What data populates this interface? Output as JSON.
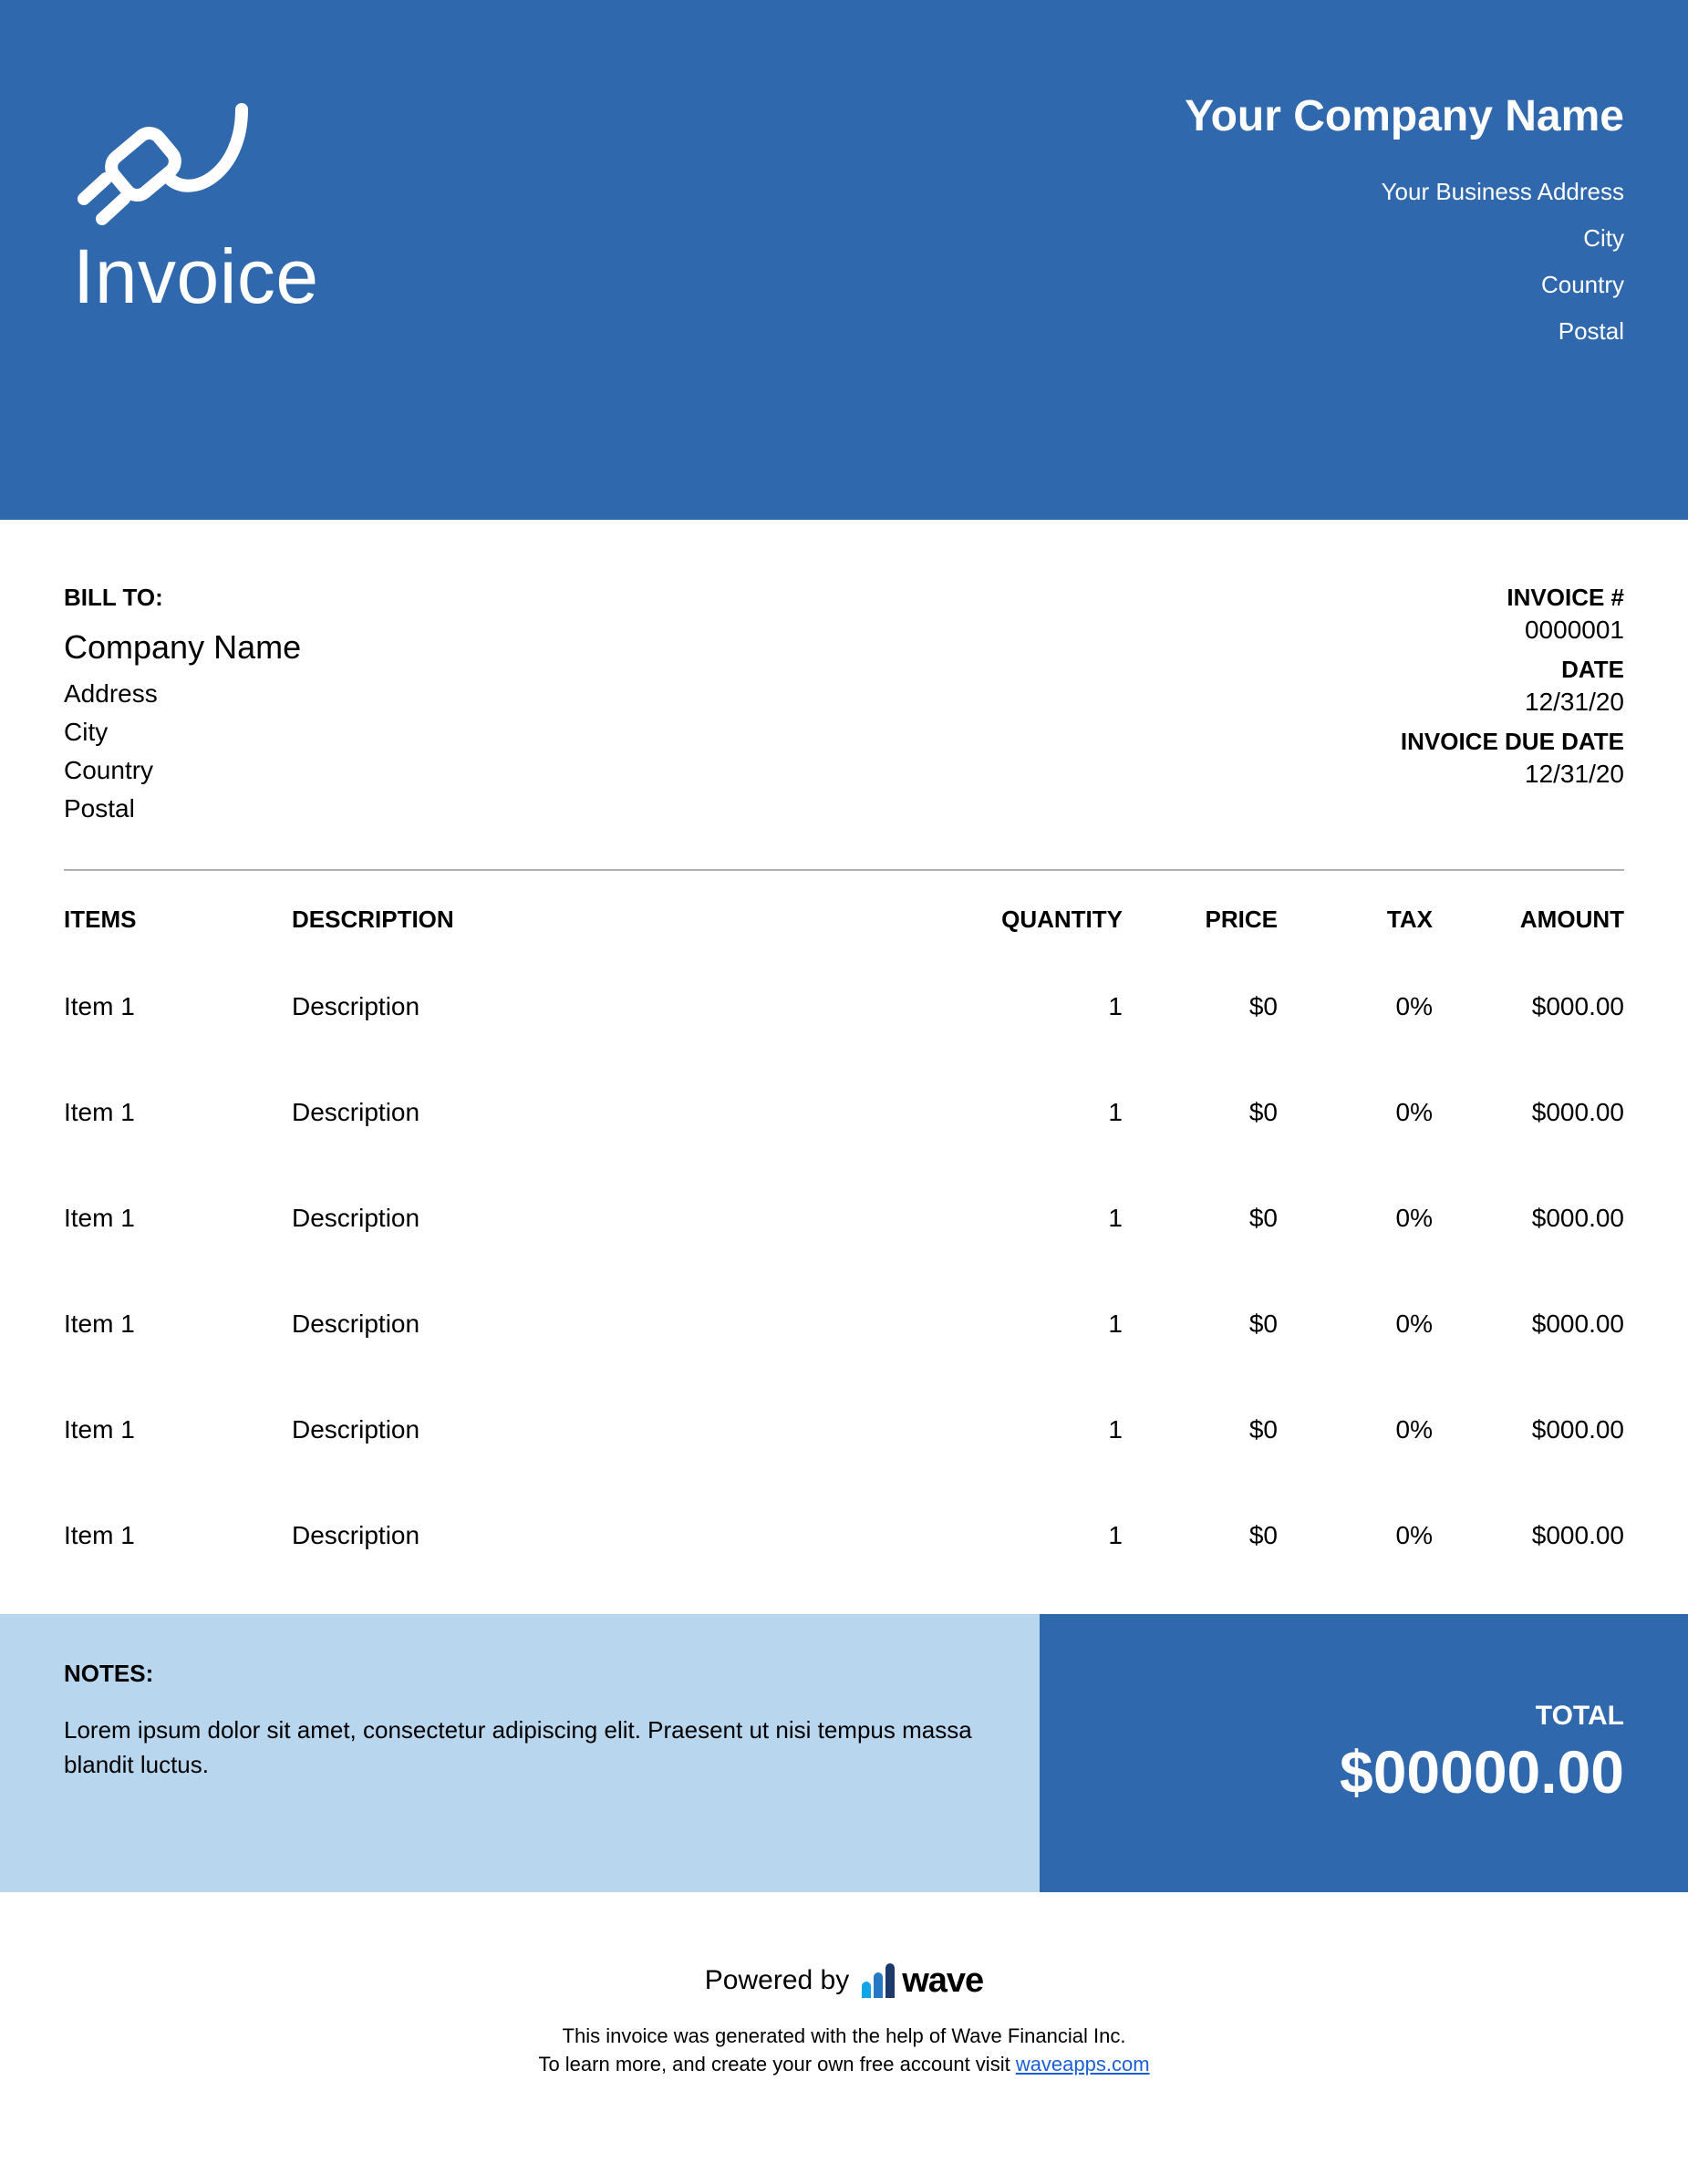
{
  "colors": {
    "primary": "#2f68ac",
    "notes_bg": "#b9d6ef",
    "text": "#000000",
    "white": "#ffffff",
    "hr": "#b0b0b0",
    "link": "#1a5fd6"
  },
  "header": {
    "title": "Invoice",
    "company_name": "Your Company Name",
    "address": [
      "Your Business Address",
      "City",
      "Country",
      "Postal"
    ]
  },
  "bill_to": {
    "label": "BILL TO:",
    "company": "Company Name",
    "lines": [
      "Address",
      "City",
      "Country",
      "Postal"
    ]
  },
  "invoice_meta": {
    "number_label": "INVOICE #",
    "number": "0000001",
    "date_label": "DATE",
    "date": "12/31/20",
    "due_label": "INVOICE DUE DATE",
    "due": "12/31/20"
  },
  "table": {
    "headers": {
      "items": "ITEMS",
      "description": "DESCRIPTION",
      "quantity": "QUANTITY",
      "price": "PRICE",
      "tax": "TAX",
      "amount": "AMOUNT"
    },
    "rows": [
      {
        "item": "Item 1",
        "description": "Description",
        "quantity": "1",
        "price": "$0",
        "tax": "0%",
        "amount": "$000.00"
      },
      {
        "item": "Item 1",
        "description": "Description",
        "quantity": "1",
        "price": "$0",
        "tax": "0%",
        "amount": "$000.00"
      },
      {
        "item": "Item 1",
        "description": "Description",
        "quantity": "1",
        "price": "$0",
        "tax": "0%",
        "amount": "$000.00"
      },
      {
        "item": "Item 1",
        "description": "Description",
        "quantity": "1",
        "price": "$0",
        "tax": "0%",
        "amount": "$000.00"
      },
      {
        "item": "Item 1",
        "description": "Description",
        "quantity": "1",
        "price": "$0",
        "tax": "0%",
        "amount": "$000.00"
      },
      {
        "item": "Item 1",
        "description": "Description",
        "quantity": "1",
        "price": "$0",
        "tax": "0%",
        "amount": "$000.00"
      }
    ]
  },
  "notes": {
    "label": "NOTES:",
    "text": "Lorem ipsum dolor sit amet, consectetur adipiscing elit. Praesent ut nisi tempus massa blandit luctus."
  },
  "total": {
    "label": "TOTAL",
    "value": "$00000.00"
  },
  "footer": {
    "powered_by": "Powered by",
    "brand": "wave",
    "line1": "This invoice was generated with the help of Wave Financial Inc.",
    "line2_prefix": "To learn more, and create your own free account visit ",
    "link_text": "waveapps.com"
  }
}
